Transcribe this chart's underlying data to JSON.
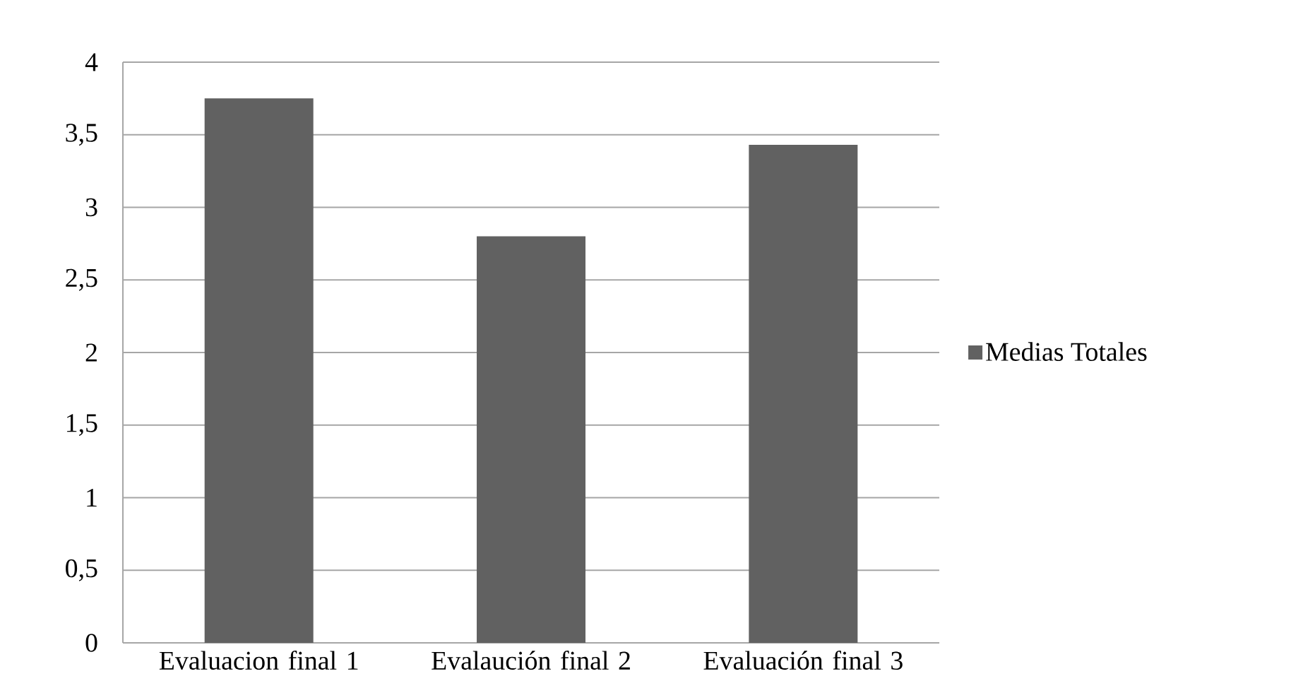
{
  "chart_data": {
    "type": "bar",
    "categories": [
      "Evaluacion final 1",
      "Evalaución final 2",
      "Evaluación final 3"
    ],
    "series": [
      {
        "name": "Medias Totales",
        "color": "#616161",
        "values": [
          3.75,
          2.8,
          3.43
        ]
      }
    ],
    "ylim": [
      0,
      4
    ],
    "yticks": [
      0,
      {
        "value": 0.5,
        "label": "0,5"
      },
      1,
      {
        "value": 1.5,
        "label": "1,5"
      },
      2,
      {
        "value": 2.5,
        "label": "2,5"
      },
      3,
      {
        "value": 3.5,
        "label": "3,5"
      },
      4
    ],
    "grid": "y",
    "legend": "right"
  }
}
